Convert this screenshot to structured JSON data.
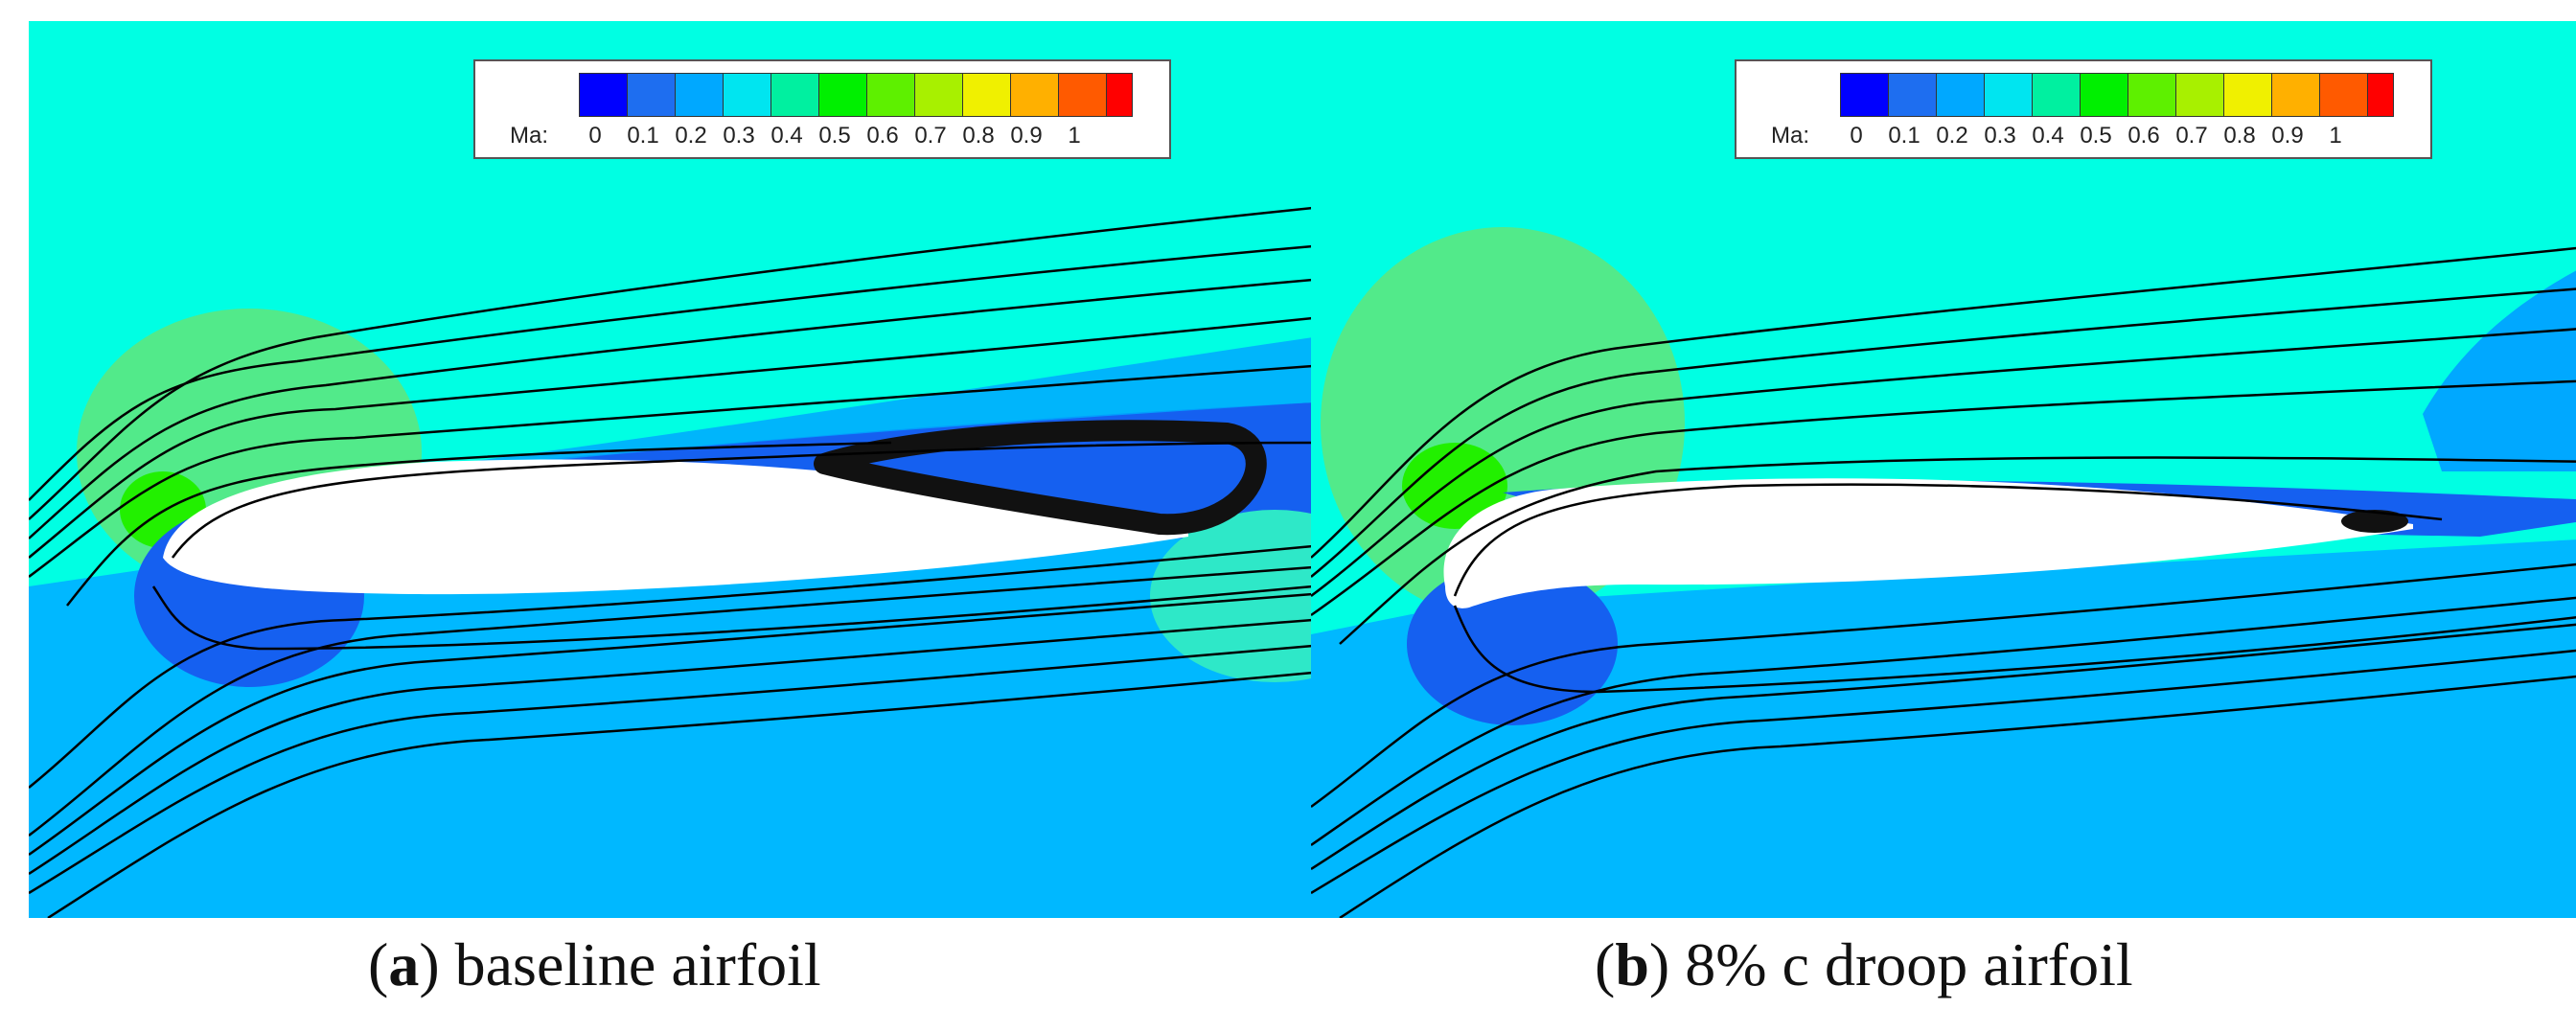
{
  "colors": {
    "mach_scale": [
      "#0000ff",
      "#1e6ef0",
      "#00a8ff",
      "#00e5f0",
      "#00f0a0",
      "#00f000",
      "#5ef000",
      "#a8f000",
      "#f0f000",
      "#ffb000",
      "#ff5a00",
      "#ff0000"
    ],
    "freestream": "#00ffe3",
    "lower": "#00b8ff",
    "slow": "#1560f0",
    "bubble": "#52ea8a",
    "peak": "#22f000",
    "streamline": "#000000",
    "airfoil": "#ffffff"
  },
  "panels": [
    {
      "id": "a",
      "legend": {
        "label": "Ma:",
        "ticks": [
          "0",
          "0.1",
          "0.2",
          "0.3",
          "0.4",
          "0.5",
          "0.6",
          "0.7",
          "0.8",
          "0.9",
          "1"
        ]
      },
      "caption": {
        "letter": "a",
        "text": "baseline airfoil"
      }
    },
    {
      "id": "b",
      "legend": {
        "label": "Ma:",
        "ticks": [
          "0",
          "0.1",
          "0.2",
          "0.3",
          "0.4",
          "0.5",
          "0.6",
          "0.7",
          "0.8",
          "0.9",
          "1"
        ]
      },
      "caption": {
        "letter": "b",
        "text": "8% c droop airfoil"
      }
    }
  ]
}
